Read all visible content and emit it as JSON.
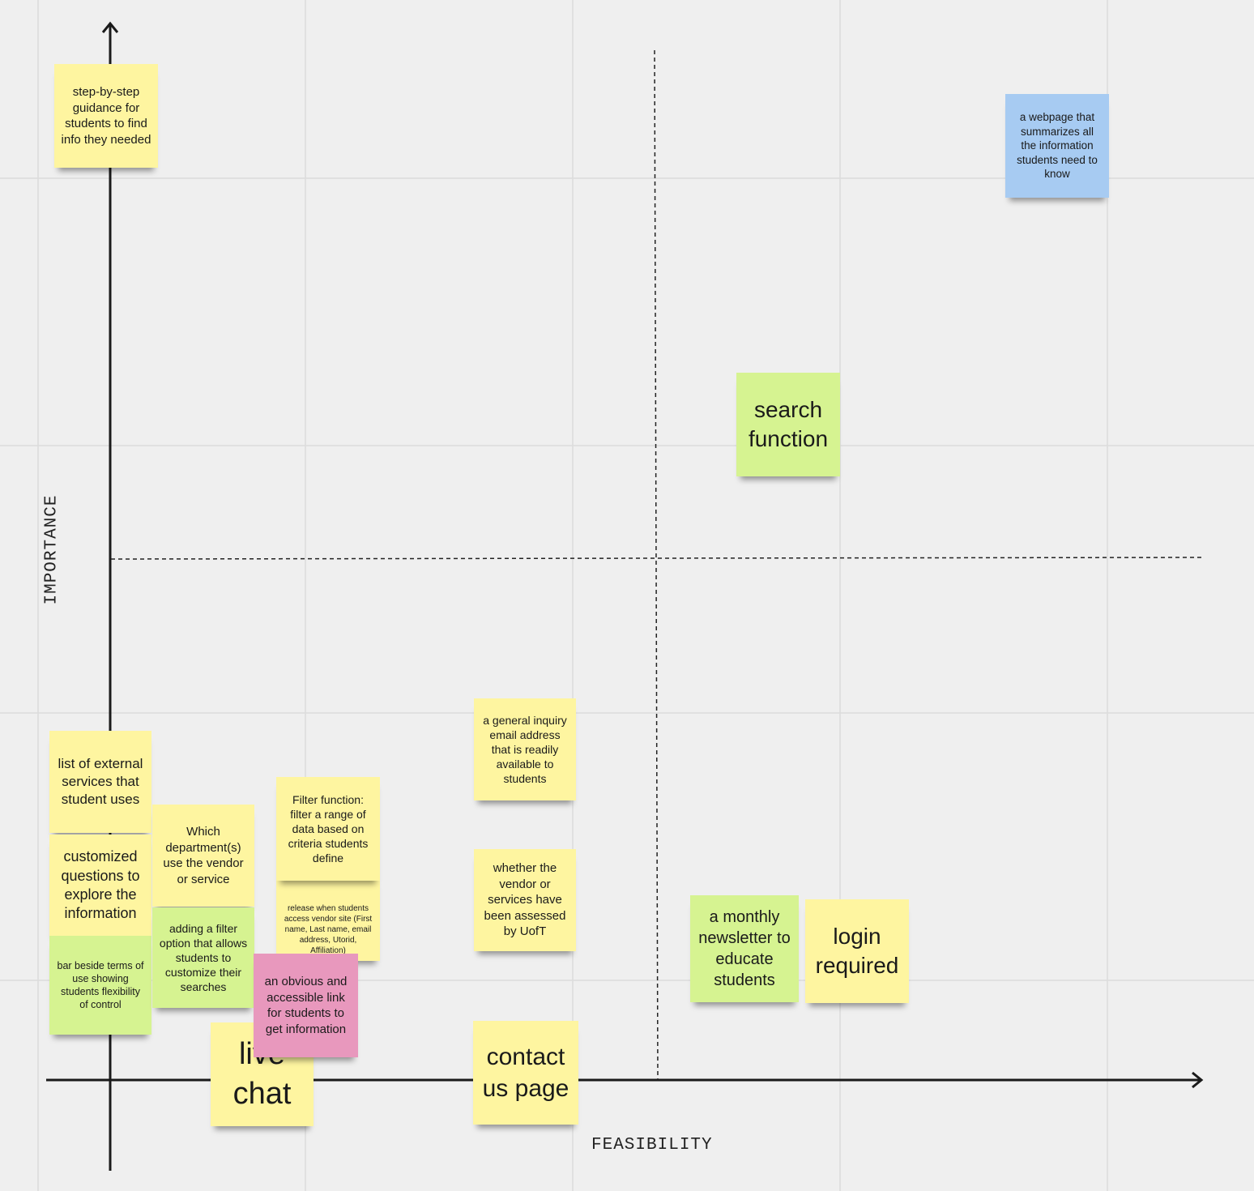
{
  "axes": {
    "y_label": "IMPORTANCE",
    "x_label": "FEASIBILITY"
  },
  "notes": [
    {
      "text": "step-by-step guidance for students to find info they needed"
    },
    {
      "text": "a webpage that summarizes all the information students need to know"
    },
    {
      "text": "search function"
    },
    {
      "text": "list of external services that student uses"
    },
    {
      "text": "customized questions to explore the information"
    },
    {
      "text": "bar beside terms of use showing students flexibility of control"
    },
    {
      "text": "Which department(s) use the vendor or service"
    },
    {
      "text": "adding a filter option that allows students to customize their searches"
    },
    {
      "text": "release when students access vendor site (First name, Last name, email address, Utorid, Affiliation)"
    },
    {
      "text": "Filter function: filter a range of data based on criteria students define"
    },
    {
      "text": "live chat"
    },
    {
      "text": "an obvious and accessible link for students to get information"
    },
    {
      "text": "a general inquiry email address that is readily available to students"
    },
    {
      "text": "whether the vendor or services have been assessed by UofT"
    },
    {
      "text": "contact us page"
    },
    {
      "text": "a monthly newsletter to educate students"
    },
    {
      "text": "login required"
    }
  ]
}
